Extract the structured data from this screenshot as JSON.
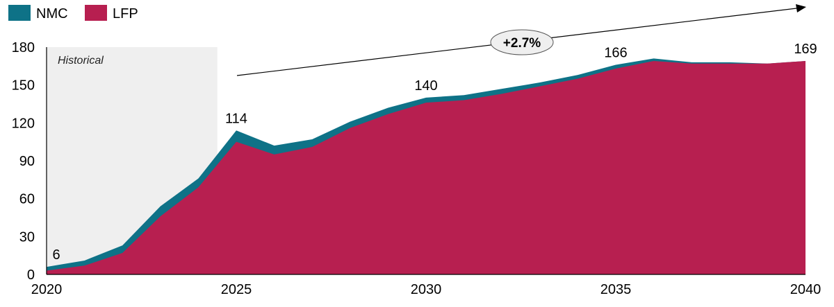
{
  "chart_data": {
    "type": "area",
    "stacked": true,
    "legend_placement": "top-left",
    "grid": false,
    "x": [
      2020,
      2021,
      2022,
      2023,
      2024,
      2025,
      2026,
      2027,
      2028,
      2029,
      2030,
      2031,
      2032,
      2033,
      2034,
      2035,
      2036,
      2037,
      2038,
      2039,
      2040
    ],
    "xlim": [
      2020,
      2040
    ],
    "ylim": [
      0,
      180
    ],
    "x_ticks": [
      2020,
      2025,
      2030,
      2035,
      2040
    ],
    "y_ticks": [
      0,
      30,
      60,
      90,
      120,
      150,
      180
    ],
    "series": [
      {
        "name": "LFP",
        "color": "#b71f50",
        "values": [
          3,
          7,
          17,
          46,
          69,
          105,
          95,
          101,
          116,
          127,
          136,
          138,
          143,
          149,
          155,
          163,
          169,
          167,
          167,
          167,
          169
        ]
      },
      {
        "name": "NMC",
        "color": "#0e7287",
        "values": [
          3,
          4,
          6,
          8,
          7,
          9,
          7,
          6,
          5,
          5,
          4,
          4,
          4,
          3,
          3,
          3,
          2,
          1,
          1,
          0,
          0
        ]
      }
    ],
    "historical_region": {
      "label": "Historical",
      "x_range": [
        2020,
        2024.5
      ],
      "color": "#efefef"
    },
    "data_labels": [
      {
        "x": 2020,
        "text": "6"
      },
      {
        "x": 2025,
        "text": "114"
      },
      {
        "x": 2030,
        "text": "140"
      },
      {
        "x": 2035,
        "text": "166"
      },
      {
        "x": 2040,
        "text": "169"
      }
    ],
    "annotation": {
      "text": "+2.7%",
      "type": "growth-arrow"
    }
  }
}
